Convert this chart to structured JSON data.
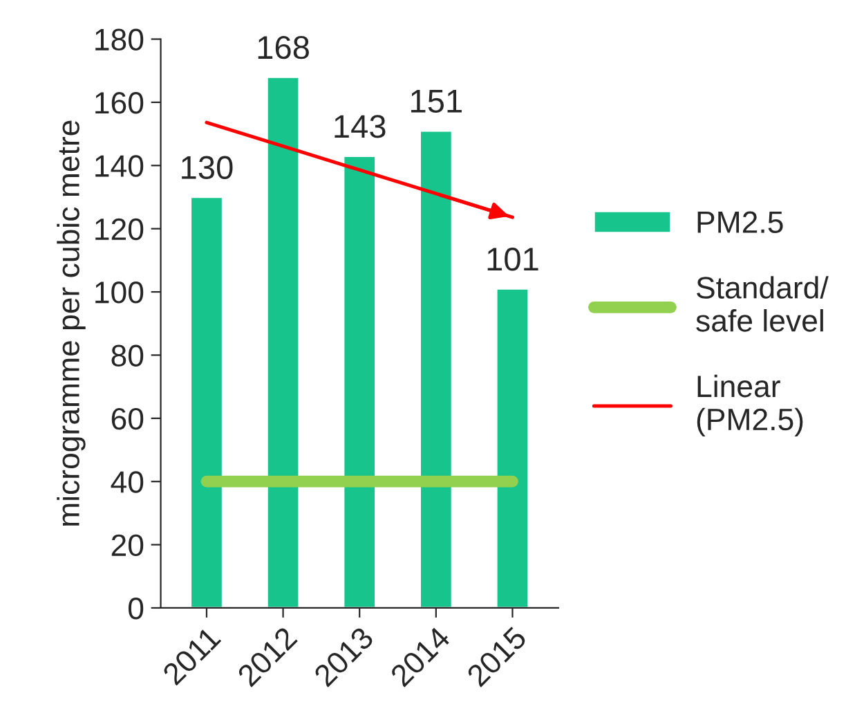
{
  "chart_data": {
    "type": "bar",
    "ylabel": "microgramme per cubic metre",
    "categories": [
      "2011",
      "2012",
      "2013",
      "2014",
      "2015"
    ],
    "series": [
      {
        "name": "PM2.5",
        "color": "#17c48c",
        "values": [
          130,
          168,
          143,
          151,
          101
        ],
        "value_labels": [
          "130",
          "168",
          "143",
          "151",
          "101"
        ]
      },
      {
        "name": "Standard/\nsafe level",
        "type": "line",
        "color": "#92d050",
        "values": [
          40,
          40,
          40,
          40,
          40
        ]
      },
      {
        "name": "Linear\n(PM2.5)",
        "type": "line",
        "color": "#ff0000",
        "values": [
          153.6,
          146.1,
          138.6,
          131.1,
          123.6
        ]
      }
    ],
    "ylim": [
      0,
      180
    ],
    "yticks": [
      0,
      20,
      40,
      60,
      80,
      100,
      120,
      140,
      160,
      180
    ],
    "grid": false,
    "legend": "right"
  }
}
